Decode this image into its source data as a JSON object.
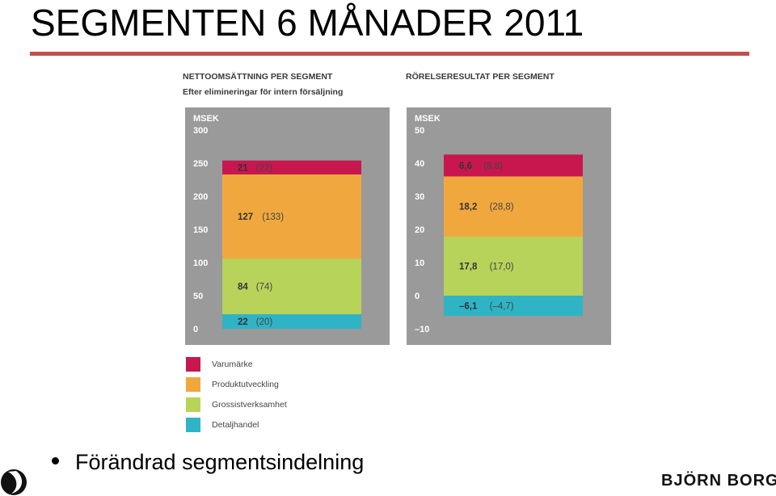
{
  "slide": {
    "title": "SEGMENTEN 6 MÅNADER 2011",
    "bullet": "Förändrad segmentsindelning",
    "brand": "BJÖRN BORG"
  },
  "colors": {
    "rule": "#c0504d",
    "panel": "#9a9a9a",
    "Varumärke": "#c8174e",
    "Produktutveckling": "#f0a83e",
    "Grossistverksamhet": "#b8d35a",
    "Detaljhandel": "#2fb4c6"
  },
  "legend": [
    {
      "label": "Varumärke",
      "color": "#c8174e"
    },
    {
      "label": "Produktutveckling",
      "color": "#f0a83e"
    },
    {
      "label": "Grossistverksamhet",
      "color": "#b8d35a"
    },
    {
      "label": "Detaljhandel",
      "color": "#2fb4c6"
    }
  ],
  "chart_data": [
    {
      "type": "bar",
      "stacked": true,
      "title": "NETTOOMSÄTTNING PER SEGMENT",
      "subtitle": "Efter elimineringar för intern försäljning",
      "ylabel": "MSEK",
      "ylim": [
        0,
        300
      ],
      "yticks": [
        "0",
        "50",
        "100",
        "150",
        "200",
        "250",
        "300"
      ],
      "tickvalues": [
        0,
        50,
        100,
        150,
        200,
        250,
        300
      ],
      "segments": [
        {
          "name": "Detaljhandel",
          "value": 22,
          "label": "22",
          "prior": "(20)"
        },
        {
          "name": "Grossistverksamhet",
          "value": 84,
          "label": "84",
          "prior": "(74)"
        },
        {
          "name": "Produktutveckling",
          "value": 127,
          "label": "127",
          "prior": "(133)"
        },
        {
          "name": "Varumärke",
          "value": 21,
          "label": "21",
          "prior": "(22)"
        }
      ]
    },
    {
      "type": "bar",
      "stacked": true,
      "title": "RÖRELSERESULTAT PER SEGMENT",
      "ylabel": "MSEK",
      "ylim": [
        -10,
        50
      ],
      "yticks": [
        "–10",
        "0",
        "10",
        "20",
        "30",
        "40",
        "50"
      ],
      "tickvalues": [
        -10,
        0,
        10,
        20,
        30,
        40,
        50
      ],
      "segments": [
        {
          "name": "Detaljhandel",
          "value": -6.1,
          "label": "–6,1",
          "prior": "(–4,7)"
        },
        {
          "name": "Grossistverksamhet",
          "value": 17.8,
          "label": "17,8",
          "prior": "(17,0)"
        },
        {
          "name": "Produktutveckling",
          "value": 18.2,
          "label": "18,2",
          "prior": "(28,8)"
        },
        {
          "name": "Varumärke",
          "value": 6.6,
          "label": "6,6",
          "prior": "(8,8)"
        }
      ]
    }
  ]
}
